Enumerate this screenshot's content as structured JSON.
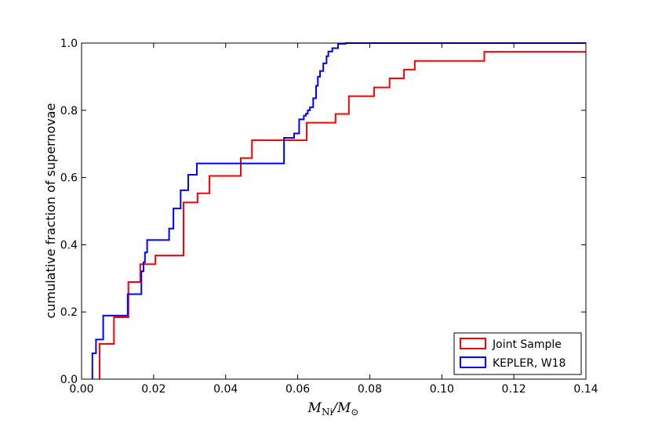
{
  "chart_data": {
    "type": "line",
    "step": true,
    "xlabel": {
      "main": "M",
      "sub": "Ni",
      "sep": "/M",
      "sub2": "⊙"
    },
    "ylabel": "cumulative fraction of supernovae",
    "xlim": [
      0.0,
      0.14
    ],
    "ylim": [
      0.0,
      1.0
    ],
    "xticks": [
      "0.00",
      "0.02",
      "0.04",
      "0.06",
      "0.08",
      "0.10",
      "0.12",
      "0.14"
    ],
    "yticks": [
      "0.0",
      "0.2",
      "0.4",
      "0.6",
      "0.8",
      "1.0"
    ],
    "grid": false,
    "legend_position": "lower-right",
    "series": [
      {
        "name": "Joint Sample",
        "color": "#ff0000",
        "x": [
          0.005,
          0.009,
          0.013,
          0.0163,
          0.0178,
          0.0205,
          0.0283,
          0.0322,
          0.0355,
          0.0442,
          0.0473,
          0.0625,
          0.0705,
          0.0742,
          0.0812,
          0.0855,
          0.0895,
          0.0925,
          0.1118,
          0.14
        ],
        "y": [
          0.105,
          0.184,
          0.289,
          0.342,
          0.342,
          0.368,
          0.526,
          0.553,
          0.605,
          0.658,
          0.711,
          0.763,
          0.789,
          0.842,
          0.868,
          0.895,
          0.921,
          0.947,
          0.974,
          0.974
        ]
      },
      {
        "name": "KEPLER, W18",
        "color": "#0000ff",
        "x": [
          0.003,
          0.004,
          0.006,
          0.0128,
          0.0166,
          0.0172,
          0.0176,
          0.0182,
          0.0243,
          0.0255,
          0.0275,
          0.0296,
          0.032,
          0.0497,
          0.0562,
          0.059,
          0.0604,
          0.0617,
          0.0623,
          0.0628,
          0.0634,
          0.0643,
          0.0651,
          0.0656,
          0.0662,
          0.0671,
          0.068,
          0.0685,
          0.0696,
          0.0712,
          0.0733,
          0.14
        ],
        "y": [
          0.077,
          0.118,
          0.189,
          0.253,
          0.321,
          0.348,
          0.377,
          0.414,
          0.448,
          0.508,
          0.562,
          0.608,
          0.642,
          0.642,
          0.718,
          0.731,
          0.773,
          0.784,
          0.79,
          0.8,
          0.809,
          0.836,
          0.873,
          0.9,
          0.917,
          0.94,
          0.961,
          0.975,
          0.985,
          0.998,
          1.0,
          1.0
        ]
      }
    ]
  }
}
